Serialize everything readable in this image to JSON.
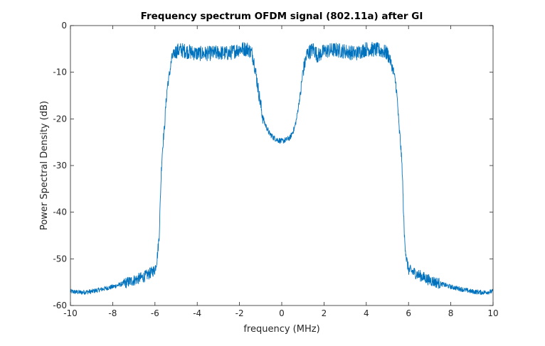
{
  "chart_data": {
    "type": "line",
    "title": "Frequency spectrum OFDM signal (802.11a) after GI",
    "xlabel": "frequency (MHz)",
    "ylabel": "Power Spectral Density (dB)",
    "xlim": [
      -10,
      10
    ],
    "ylim": [
      -60,
      0
    ],
    "xticks": [
      -10,
      -8,
      -6,
      -4,
      -2,
      0,
      2,
      4,
      6,
      8,
      10
    ],
    "yticks": [
      0,
      -10,
      -20,
      -30,
      -40,
      -50,
      -60
    ],
    "grid": false,
    "line_color": "#0072BD",
    "series": [
      {
        "x": [
          -10,
          -9.5,
          -9,
          -8.5,
          -8,
          -7.5,
          -7,
          -6.5,
          -6.2,
          -6.0,
          -5.9,
          -5.8,
          -5.75,
          -5.7,
          -5.65,
          -5.6,
          -5.55,
          -5.5,
          -5.45,
          -5.4,
          -5.35,
          -5.3,
          -5.25,
          -5.2,
          -5.1,
          -5.0,
          -4.8,
          -4.5,
          -4.0,
          -3.5,
          -3.0,
          -2.5,
          -2.0,
          -1.8,
          -1.6,
          -1.4,
          -1.3,
          -1.2,
          -1.1,
          -1.0,
          -0.9,
          -0.8,
          -0.6,
          -0.4,
          -0.2,
          0.0,
          0.2,
          0.4,
          0.6,
          0.7,
          0.8,
          0.9,
          1.0,
          1.2,
          1.5,
          1.7,
          2.0,
          2.5,
          3.0,
          3.5,
          4.0,
          4.5,
          4.8,
          5.0,
          5.1,
          5.2,
          5.3,
          5.35,
          5.4,
          5.45,
          5.5,
          5.55,
          5.6,
          5.65,
          5.7,
          5.75,
          5.8,
          5.9,
          6.0,
          6.5,
          7.0,
          7.5,
          8.0,
          8.5,
          9.0,
          9.5,
          10.0
        ],
        "y": [
          -57,
          -57.2,
          -57,
          -56.5,
          -56,
          -55.3,
          -54.6,
          -53.8,
          -53,
          -52.3,
          -50,
          -45,
          -38,
          -31,
          -27,
          -24,
          -22,
          -18,
          -15,
          -12.5,
          -11.5,
          -10,
          -8.5,
          -7,
          -6,
          -5.5,
          -5.2,
          -5.5,
          -6,
          -6,
          -5.8,
          -6,
          -5,
          -5,
          -5,
          -6,
          -8,
          -11,
          -14,
          -17,
          -19.5,
          -21,
          -23,
          -24,
          -24.5,
          -24.8,
          -24.5,
          -24,
          -22,
          -20,
          -17,
          -14,
          -10,
          -6,
          -5,
          -6.5,
          -5.5,
          -5.2,
          -5.5,
          -6,
          -5,
          -5.2,
          -5.5,
          -6,
          -7,
          -8.5,
          -10,
          -11.5,
          -12.5,
          -15,
          -18,
          -22,
          -24,
          -27,
          -31,
          -38,
          -45,
          -50,
          -52.3,
          -53.5,
          -54.6,
          -55.3,
          -56,
          -56.5,
          -57,
          -57.2,
          -57
        ]
      }
    ]
  }
}
